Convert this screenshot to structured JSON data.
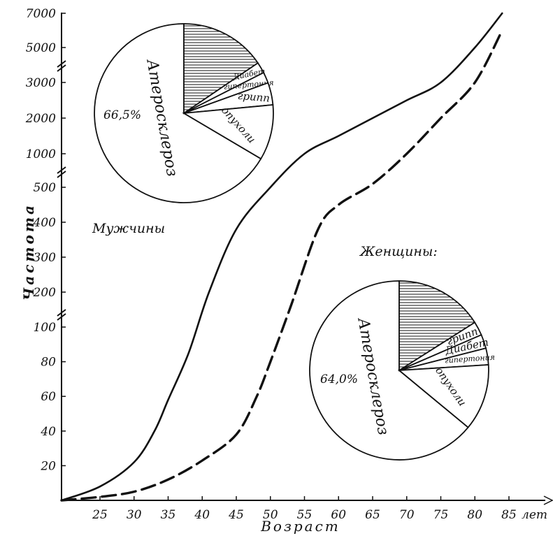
{
  "chart_data": {
    "type": "line",
    "xlabel": "Возраст",
    "ylabel": "Частота",
    "x_unit_label": "лет",
    "x_ticks": [
      25,
      30,
      35,
      40,
      45,
      50,
      55,
      60,
      65,
      70,
      75,
      80,
      85
    ],
    "y_tick_labels": [
      "20",
      "40",
      "60",
      "80",
      "100",
      "200",
      "300",
      "400",
      "500",
      "1000",
      "2000",
      "3000",
      "5000",
      "7000"
    ],
    "y_scale": "broken",
    "series": [
      {
        "name": "Мужчины",
        "style": "solid",
        "x": [
          20,
          25,
          30,
          33,
          35,
          38,
          41,
          45,
          50,
          55,
          60,
          65,
          70,
          75,
          80,
          84
        ],
        "y": [
          0,
          8,
          22,
          40,
          58,
          85,
          200,
          380,
          500,
          1000,
          1500,
          2000,
          2500,
          3000,
          5000,
          7000
        ]
      },
      {
        "name": "Женщины",
        "style": "dashed",
        "x": [
          20,
          25,
          30,
          35,
          40,
          45,
          48,
          50,
          53,
          57,
          60,
          65,
          70,
          75,
          80,
          84
        ],
        "y": [
          0,
          2,
          5,
          12,
          23,
          38,
          60,
          80,
          160,
          380,
          450,
          550,
          1000,
          2000,
          3000,
          6000
        ]
      }
    ],
    "pies": [
      {
        "group": "Мужчины",
        "big_label": "Атеросклероз",
        "big_value": "66,5%",
        "slices": [
          {
            "label": "Атеросклероз",
            "value": 66.5,
            "hatched": false
          },
          {
            "label": "",
            "value": 15.5,
            "hatched": true
          },
          {
            "label": "Диабет",
            "value": 2.0,
            "hatched": false
          },
          {
            "label": "гипертония",
            "value": 2.0,
            "hatched": false
          },
          {
            "label": "грипп",
            "value": 4.0,
            "hatched": false
          },
          {
            "label": "опухоли",
            "value": 10.0,
            "hatched": false
          }
        ]
      },
      {
        "group": "Женщины:",
        "big_label": "Атеросклероз",
        "big_value": "64,0%",
        "slices": [
          {
            "label": "Атеросклероз",
            "value": 64.0,
            "hatched": false
          },
          {
            "label": "",
            "value": 16.0,
            "hatched": true
          },
          {
            "label": "грипп",
            "value": 2.5,
            "hatched": false
          },
          {
            "label": "Диабет",
            "value": 2.5,
            "hatched": false
          },
          {
            "label": "гипертония",
            "value": 3.0,
            "hatched": false
          },
          {
            "label": "опухоли",
            "value": 12.0,
            "hatched": false
          }
        ]
      }
    ],
    "series_labels": [
      "Мужчины",
      "Женщины:"
    ]
  }
}
